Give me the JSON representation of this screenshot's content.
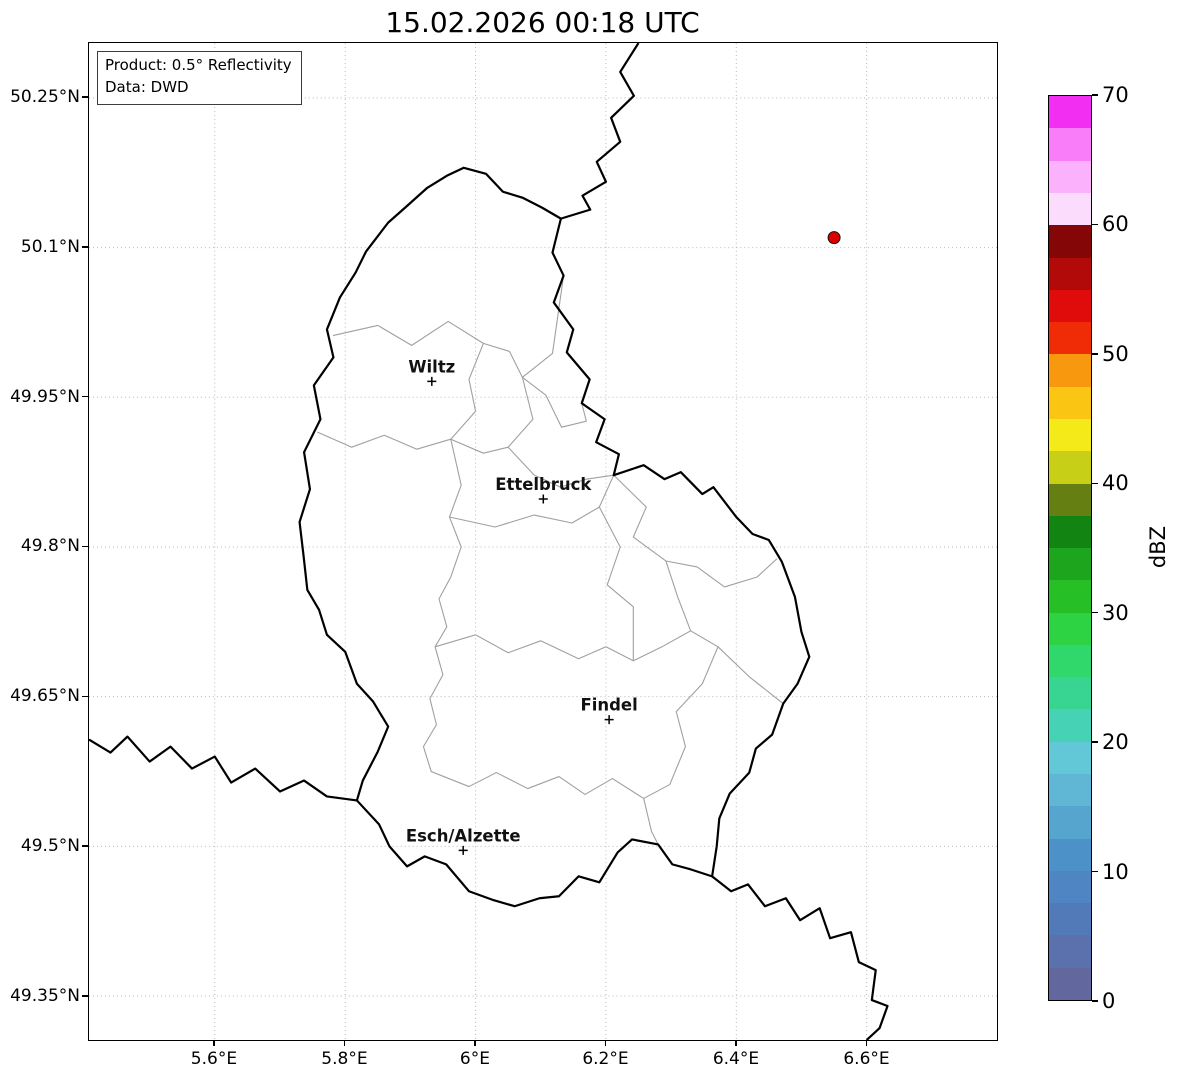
{
  "title": "15.02.2026 00:18 UTC",
  "info_box": {
    "line1": "Product: 0.5° Reflectivity",
    "line2": "Data: DWD"
  },
  "map": {
    "lon_min": 5.407,
    "lon_max": 6.8,
    "lat_min": 49.306,
    "lat_max": 50.305,
    "x_ticks": [
      {
        "value": 5.6,
        "label": "5.6°E"
      },
      {
        "value": 5.8,
        "label": "5.8°E"
      },
      {
        "value": 6.0,
        "label": "6°E"
      },
      {
        "value": 6.2,
        "label": "6.2°E"
      },
      {
        "value": 6.4,
        "label": "6.4°E"
      },
      {
        "value": 6.6,
        "label": "6.6°E"
      }
    ],
    "y_ticks": [
      {
        "value": 50.25,
        "label": "50.25°N"
      },
      {
        "value": 50.1,
        "label": "50.1°N"
      },
      {
        "value": 49.95,
        "label": "49.95°N"
      },
      {
        "value": 49.8,
        "label": "49.8°N"
      },
      {
        "value": 49.65,
        "label": "49.65°N"
      },
      {
        "value": 49.5,
        "label": "49.5°N"
      },
      {
        "value": 49.35,
        "label": "49.35°N"
      }
    ],
    "cities": [
      {
        "name": "Wiltz",
        "lon": 5.933,
        "lat": 49.966
      },
      {
        "name": "Ettelbruck",
        "lon": 6.104,
        "lat": 49.848
      },
      {
        "name": "Findel",
        "lon": 6.205,
        "lat": 49.627
      },
      {
        "name": "Esch/Alzette",
        "lon": 5.981,
        "lat": 49.496
      }
    ],
    "radar_marker": {
      "lon": 6.55,
      "lat": 50.11,
      "color": "#dd0000"
    }
  },
  "colorbar": {
    "label": "dBZ",
    "min": 0,
    "max": 70,
    "ticks": [
      0,
      10,
      20,
      30,
      40,
      50,
      60,
      70
    ],
    "colors_bottom_to_top": [
      "#62689e",
      "#5a71ad",
      "#527ab9",
      "#4e85c2",
      "#4c92c9",
      "#55a5cf",
      "#60b6d5",
      "#62c8d8",
      "#46d2b5",
      "#38d592",
      "#30d76b",
      "#2dd343",
      "#26bf26",
      "#1da51d",
      "#128412",
      "#667f12",
      "#c7cf16",
      "#f4ea19",
      "#fbc514",
      "#f8980f",
      "#ef2c06",
      "#e00b0b",
      "#b20909",
      "#850606",
      "#fcdcfc",
      "#fbb1fb",
      "#f97df9",
      "#f32ef3"
    ]
  },
  "colors": {
    "border": "#000000",
    "canton": "#a0a0a0",
    "grid": "#b8b8b8"
  }
}
